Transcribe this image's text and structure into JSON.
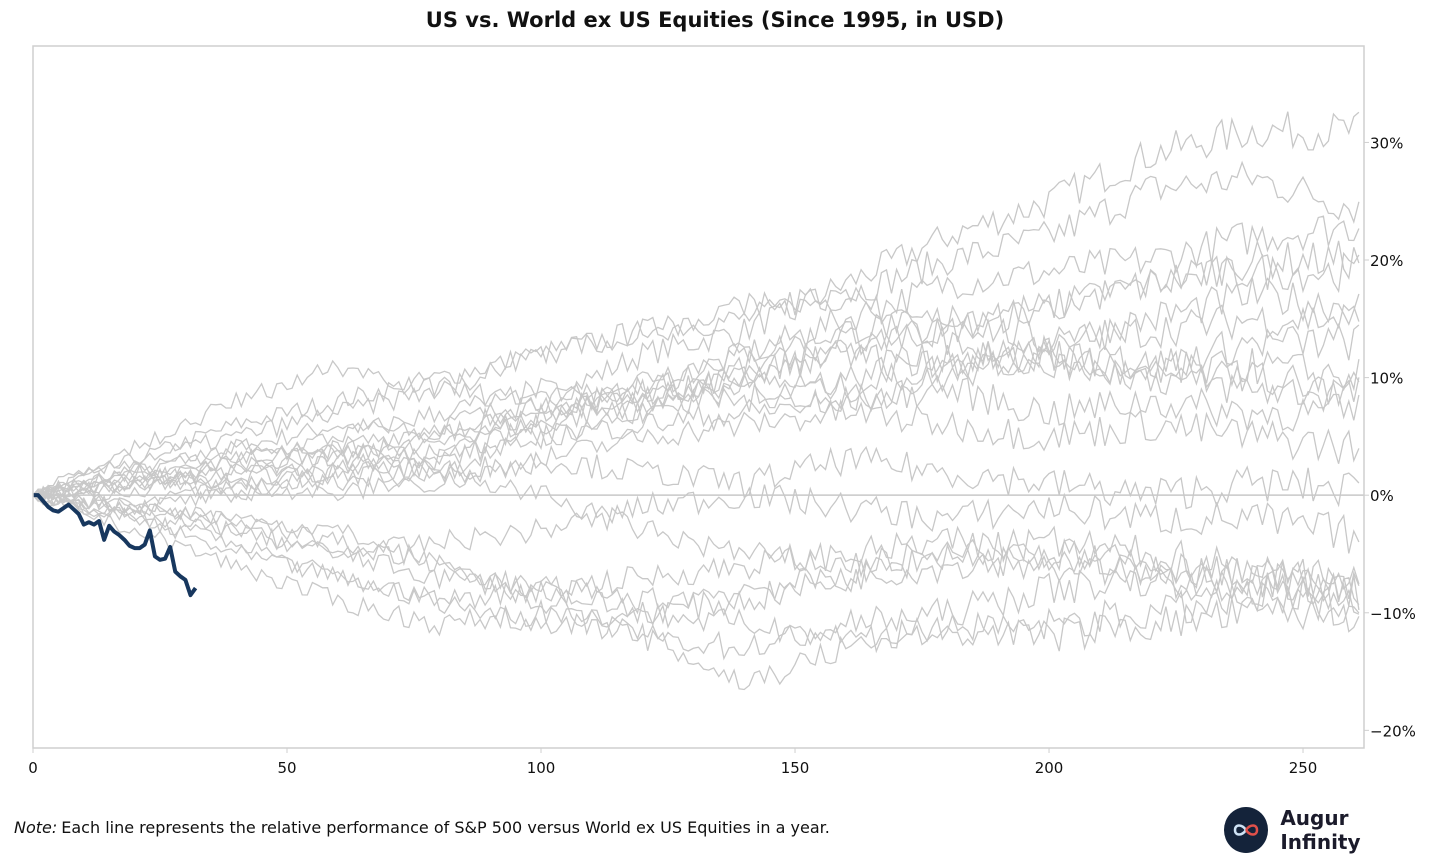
{
  "chart_data": {
    "type": "line",
    "title": "US vs. World ex US Equities (Since 1995, in USD)",
    "xlabel": "",
    "ylabel": "",
    "xlim": [
      0,
      262
    ],
    "ylim": [
      -21.5,
      38.2
    ],
    "x_ticks": [
      0,
      50,
      100,
      150,
      200,
      250
    ],
    "y_ticks": [
      30,
      20,
      10,
      0,
      -10,
      -20
    ],
    "y_tick_labels": [
      "30%",
      "20%",
      "10%",
      "0%",
      "−10%",
      "−20%"
    ],
    "y_axis_side": "right",
    "grid": false,
    "reference_line": 0,
    "background_series_color": "#c8c8c8",
    "highlight_color": "#17375e",
    "background_series_sample_days": [
      0,
      20,
      40,
      60,
      80,
      100,
      120,
      140,
      160,
      180,
      200,
      220,
      240,
      261
    ],
    "background_series": [
      [
        0,
        2,
        4,
        6,
        5,
        8,
        12,
        14,
        18,
        22,
        25,
        29,
        31,
        31
      ],
      [
        0,
        3,
        6,
        8,
        10,
        12,
        14,
        15,
        17,
        20,
        22,
        26,
        27,
        24.5
      ],
      [
        0,
        1,
        3,
        2,
        5,
        7,
        9,
        12,
        15,
        18,
        19,
        20,
        22,
        23
      ],
      [
        0,
        2,
        1,
        4,
        6,
        8,
        9,
        10,
        13,
        14,
        16,
        18,
        20,
        20
      ],
      [
        0,
        -1,
        1,
        3,
        5,
        6,
        8,
        10,
        12,
        15,
        16,
        18,
        19,
        19
      ],
      [
        0,
        1,
        2,
        4,
        3,
        6,
        10,
        12,
        14,
        15,
        13,
        15,
        17,
        16
      ],
      [
        0,
        0,
        3,
        5,
        7,
        9,
        8,
        11,
        12,
        11,
        13,
        14,
        15,
        15
      ],
      [
        0,
        2,
        4,
        3,
        2,
        5,
        7,
        9,
        8,
        10,
        12,
        11,
        13,
        13
      ],
      [
        0,
        1,
        0,
        2,
        4,
        7,
        9,
        8,
        10,
        12,
        11,
        10,
        11,
        10
      ],
      [
        0,
        3,
        5,
        7,
        9,
        8,
        7,
        10,
        9,
        11,
        12,
        10,
        9,
        8.5
      ],
      [
        0,
        1,
        2,
        1,
        3,
        5,
        6,
        7,
        8,
        9,
        7,
        8,
        7,
        7
      ],
      [
        0,
        -1,
        0,
        2,
        1,
        3,
        5,
        6,
        7,
        6,
        5,
        6,
        5,
        4
      ],
      [
        0,
        2,
        1,
        0,
        2,
        3,
        2,
        1,
        3,
        2,
        1,
        0,
        1,
        0.5
      ],
      [
        0,
        -2,
        -3,
        -5,
        -4,
        -3,
        -1,
        0,
        -1,
        -2,
        -1,
        -2,
        -2,
        -3.5
      ],
      [
        0,
        -1,
        -2,
        -3,
        -6,
        -8,
        -7,
        -6,
        -5,
        -4,
        -5,
        -6,
        -7,
        -7
      ],
      [
        0,
        -2,
        -5,
        -7,
        -9,
        -8,
        -10,
        -9,
        -7,
        -6,
        -5,
        -6,
        -7,
        -8
      ],
      [
        0,
        -1,
        -3,
        -5,
        -7,
        -8,
        -9,
        -8,
        -7,
        -5,
        -6,
        -7,
        -8,
        -8.5
      ],
      [
        0,
        -3,
        -6,
        -9,
        -11,
        -10,
        -12,
        -13,
        -11,
        -10,
        -8,
        -7,
        -8,
        -9
      ],
      [
        0,
        -2,
        -4,
        -7,
        -9,
        -11,
        -10,
        -11,
        -12,
        -12,
        -11,
        -10,
        -9,
        -9.5
      ],
      [
        0,
        -1,
        -2,
        -4,
        -6,
        -9,
        -12,
        -16,
        -13,
        -11,
        -12,
        -11,
        -10,
        -10
      ],
      [
        0,
        1,
        3,
        4,
        2,
        0,
        -3,
        -5,
        -6,
        -5,
        -4,
        -5,
        -6,
        -8
      ],
      [
        0,
        4,
        8,
        11,
        9,
        12,
        14,
        16,
        17,
        13,
        12,
        11,
        10,
        9
      ]
    ],
    "highlight_series": {
      "x": [
        0,
        1,
        2,
        3,
        4,
        5,
        6,
        7,
        8,
        9,
        10,
        11,
        12,
        13,
        14,
        15,
        16,
        17,
        18,
        19,
        20,
        21,
        22,
        23,
        24,
        25,
        26,
        27,
        28,
        29,
        30,
        31,
        32
      ],
      "y": [
        0,
        0,
        -0.5,
        -1,
        -1.3,
        -1.4,
        -1.1,
        -0.8,
        -1.2,
        -1.6,
        -2.5,
        -2.3,
        -2.5,
        -2.2,
        -3.8,
        -2.6,
        -3.1,
        -3.4,
        -3.8,
        -4.3,
        -4.5,
        -4.5,
        -4.2,
        -3.0,
        -5.2,
        -5.5,
        -5.4,
        -4.4,
        -6.5,
        -6.9,
        -7.2,
        -8.5,
        -7.9
      ]
    }
  },
  "note": {
    "label": "Note:",
    "text": "Each line represents the relative performance of S&P 500 versus World ex US Equities in a year."
  },
  "brand": {
    "name": "Augur Infinity"
  }
}
